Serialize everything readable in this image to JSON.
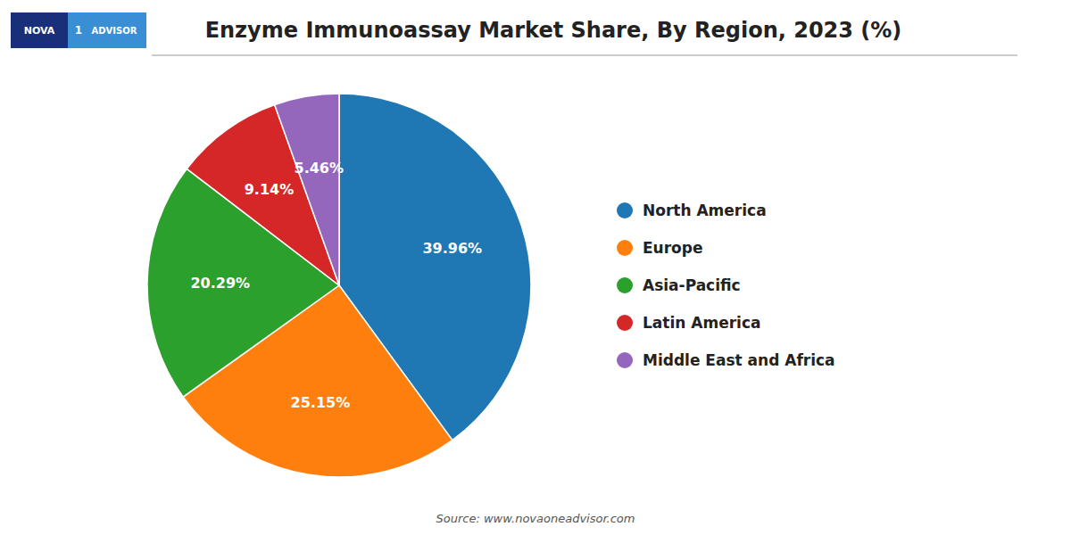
{
  "chart_data": {
    "type": "pie",
    "title": "Enzyme Immunoassay Market Share, By Region, 2023 (%)",
    "categories": [
      "North America",
      "Europe",
      "Asia-Pacific",
      "Latin America",
      "Middle East and Africa"
    ],
    "values": [
      39.96,
      25.15,
      20.29,
      9.14,
      5.46
    ],
    "value_labels": [
      "39.96%",
      "25.15%",
      "20.29%",
      "9.14%",
      "5.46%"
    ],
    "data_labels": true,
    "legend": "right",
    "annotations": [
      "NOVA",
      "1",
      "ADVISOR",
      "Source: www.novaoneadvisor.com"
    ]
  }
}
